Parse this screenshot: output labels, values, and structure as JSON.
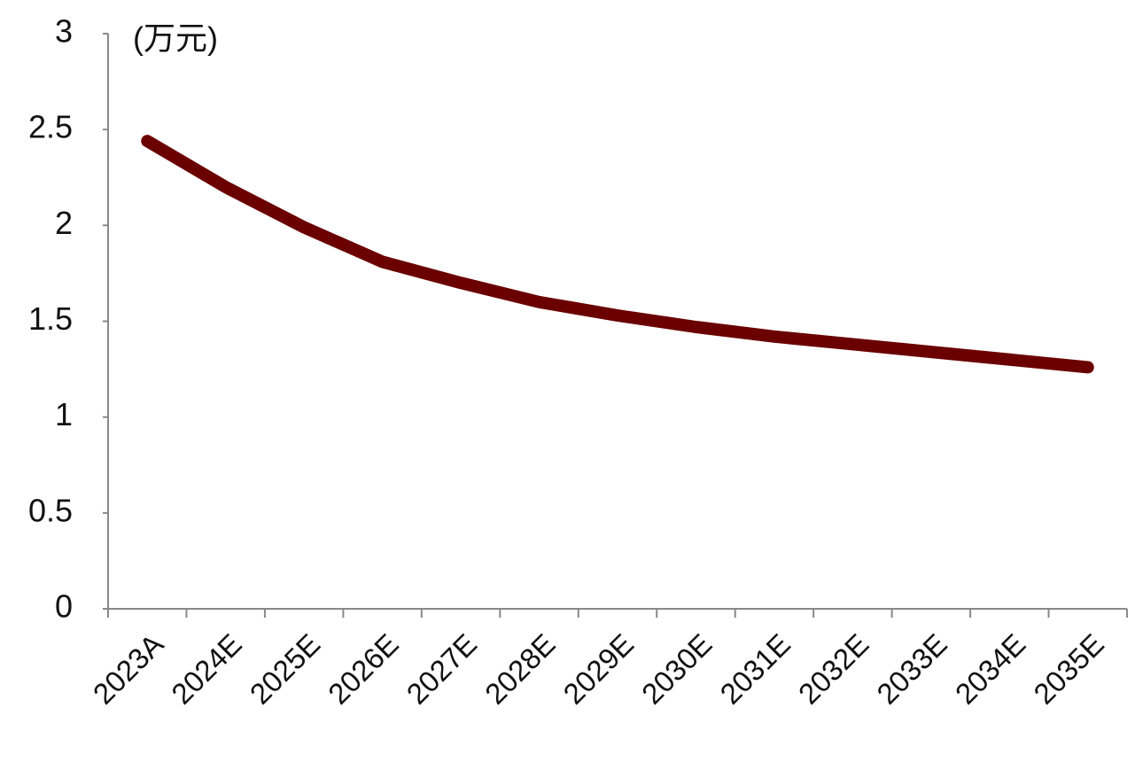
{
  "chart_data": {
    "type": "line",
    "y_label": "(万元)",
    "categories": [
      "2023A",
      "2024E",
      "2025E",
      "2026E",
      "2027E",
      "2028E",
      "2029E",
      "2030E",
      "2031E",
      "2032E",
      "2033E",
      "2034E",
      "2035E"
    ],
    "series": [
      {
        "color": "#6b0000",
        "values": [
          2.44,
          2.2,
          1.99,
          1.81,
          1.7,
          1.6,
          1.53,
          1.47,
          1.42,
          1.38,
          1.34,
          1.3,
          1.26
        ]
      }
    ],
    "ylim": [
      0,
      3
    ],
    "yticks": [
      0,
      0.5,
      1,
      1.5,
      2,
      2.5,
      3
    ],
    "grid": false
  }
}
